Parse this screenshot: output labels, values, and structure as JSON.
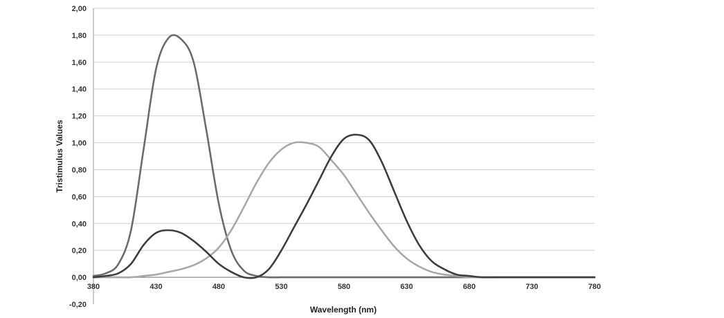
{
  "chart_data": {
    "type": "line",
    "title": "",
    "xlabel": "Wavelength (nm)",
    "ylabel": "Tristimulus Values",
    "xlim": [
      380,
      780
    ],
    "ylim": [
      -0.2,
      2.0
    ],
    "x_ticks": [
      "380",
      "430",
      "480",
      "530",
      "580",
      "630",
      "680",
      "730",
      "780"
    ],
    "y_ticks": [
      "-0,20",
      "0,00",
      "0,20",
      "0,40",
      "0,60",
      "0,80",
      "1,00",
      "1,20",
      "1,40",
      "1,60",
      "1,80",
      "2,00"
    ],
    "grid": "horizontal",
    "legend": "none",
    "x": [
      380,
      390,
      400,
      410,
      420,
      430,
      440,
      450,
      460,
      470,
      480,
      490,
      500,
      510,
      520,
      530,
      540,
      550,
      560,
      570,
      580,
      590,
      600,
      610,
      620,
      630,
      640,
      650,
      660,
      670,
      680,
      690,
      700,
      720,
      740,
      760,
      780
    ],
    "series": [
      {
        "color": "#6b6b6b",
        "values": [
          0.01,
          0.03,
          0.1,
          0.35,
          0.95,
          1.55,
          1.78,
          1.77,
          1.6,
          1.1,
          0.55,
          0.2,
          0.05,
          0.01,
          0.0,
          0.0,
          0.0,
          0.0,
          0.0,
          0.0,
          0.0,
          0.0,
          0.0,
          0.0,
          0.0,
          0.0,
          0.0,
          0.0,
          0.0,
          0.0,
          0.0,
          0.0,
          0.0,
          0.0,
          0.0,
          0.0,
          0.0
        ]
      },
      {
        "color": "#a8a8a8",
        "values": [
          0.0,
          0.0,
          0.0,
          0.0,
          0.01,
          0.02,
          0.04,
          0.06,
          0.09,
          0.14,
          0.22,
          0.35,
          0.52,
          0.7,
          0.85,
          0.95,
          1.0,
          1.0,
          0.97,
          0.87,
          0.76,
          0.62,
          0.48,
          0.35,
          0.23,
          0.14,
          0.08,
          0.04,
          0.02,
          0.01,
          0.0,
          0.0,
          0.0,
          0.0,
          0.0,
          0.0,
          0.0
        ]
      },
      {
        "color": "#3d3d3d",
        "values": [
          0.0,
          0.01,
          0.03,
          0.1,
          0.24,
          0.33,
          0.35,
          0.33,
          0.27,
          0.19,
          0.1,
          0.04,
          0.0,
          0.0,
          0.06,
          0.2,
          0.37,
          0.54,
          0.72,
          0.9,
          1.03,
          1.06,
          1.02,
          0.86,
          0.64,
          0.42,
          0.24,
          0.12,
          0.06,
          0.02,
          0.01,
          0.0,
          0.0,
          0.0,
          0.0,
          0.0,
          0.0
        ]
      }
    ]
  }
}
